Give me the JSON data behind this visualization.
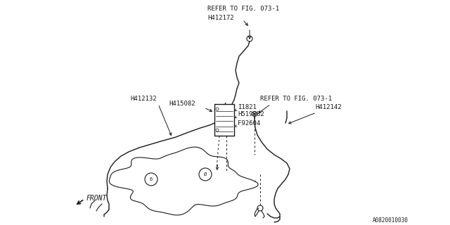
{
  "background_color": "#ffffff",
  "line_color": "#1a1a1a",
  "text_color": "#1a1a1a",
  "font_size": 6.5,
  "fig_size": [
    6.4,
    3.2
  ],
  "dpi": 100,
  "labels": {
    "refer_top": "REFER TO FIG. 073-1",
    "h412172": "H412172",
    "h415082": "H415082",
    "i1821": "I1821",
    "h519082": "H519082",
    "f92604": "F92604",
    "h412132": "H412132",
    "refer_mid": "REFER TO FIG. 073-1",
    "h412142": "H412142",
    "front": "FRONT",
    "part_num": "A0820010030"
  }
}
